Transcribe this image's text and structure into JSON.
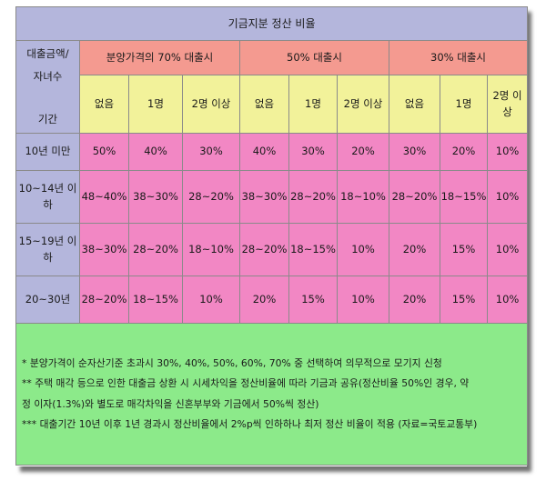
{
  "title": "기금지분 정산 비율",
  "header": {
    "corner_top": "대출금액/",
    "corner_mid": "자녀수",
    "corner_bottom": "기간",
    "groups": [
      "분양가격의 70% 대출시",
      "50% 대출시",
      "30% 대출시"
    ],
    "children": [
      "없음",
      "1명",
      "2명 이상",
      "없음",
      "1명",
      "2명 이상",
      "없음",
      "1명",
      "2명 이\n상"
    ]
  },
  "rows": [
    {
      "period": "10년 미만",
      "values": [
        "50%",
        "40%",
        "30%",
        "40%",
        "30%",
        "20%",
        "30%",
        "20%",
        "10%"
      ]
    },
    {
      "period": "10~14년 이\n하",
      "values": [
        "48~40%",
        "38~30%",
        "28~20%",
        "38~30%",
        "28~20%",
        "18~10%",
        "28~20%",
        "18~15%",
        "10%"
      ]
    },
    {
      "period": "15~19년 이\n하",
      "values": [
        "38~30%",
        "28~20%",
        "18~10%",
        "28~20%",
        "18~15%",
        "10%",
        "20%",
        "15%",
        "10%"
      ]
    },
    {
      "period": "20~30년",
      "values": [
        "28~20%",
        "18~15%",
        "10%",
        "20%",
        "15%",
        "10%",
        "20%",
        "15%",
        "10%"
      ]
    }
  ],
  "notes": [
    "* 분양가격이 순자산기준 초과시 30%, 40%, 50%, 60%, 70% 중 선택하여 의무적으로 모기지 신청",
    "** 주택 매각 등으로 인한 대출금 상환 시 시세차익을 정산비율에 따라 기금과 공유(정산비율 50%인 경우, 약",
    "정 이자(1.3%)와 별도로 매각차익을 신혼부부와 기금에서 50%씩 정산)",
    "*** 대출기간 10년 이후 1년 경과시 정산비율에서 2%p씩 인하하나 최저 정산 비율이 적용 (자료=국토교통부)"
  ]
}
